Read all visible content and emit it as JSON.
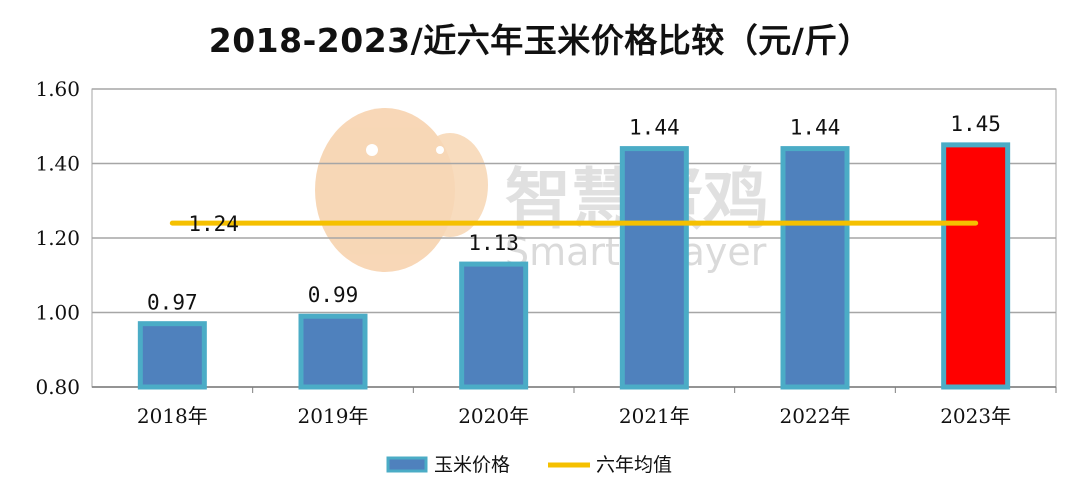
{
  "title": "2018-2023/近六年玉米价格比较（元/斤）",
  "watermark": {
    "cn": "智慧蛋鸡",
    "en": "Smarter layer"
  },
  "colors": {
    "bar": "#4f81bd",
    "bar_border": "#4bacc6",
    "highlight": "#ff0000",
    "avg_line": "#f5c000",
    "grid": "#a6a6a6"
  },
  "chart_data": {
    "type": "bar",
    "categories": [
      "2018年",
      "2019年",
      "2020年",
      "2021年",
      "2022年",
      "2023年"
    ],
    "series": [
      {
        "name": "玉米价格",
        "values": [
          0.97,
          0.99,
          1.13,
          1.44,
          1.44,
          1.45
        ],
        "labels": [
          "0.97",
          "0.99",
          "1.13",
          "1.44",
          "1.44",
          "1.45"
        ],
        "highlight_index": 5
      },
      {
        "name": "六年均值",
        "type": "line",
        "value": 1.24,
        "label": "1.24"
      }
    ],
    "ylim": [
      0.8,
      1.6
    ],
    "yticks": [
      0.8,
      1.0,
      1.2,
      1.4,
      1.6
    ],
    "ytick_labels": [
      "0.80",
      "1.00",
      "1.20",
      "1.40",
      "1.60"
    ],
    "grid": true,
    "legend_position": "bottom"
  }
}
